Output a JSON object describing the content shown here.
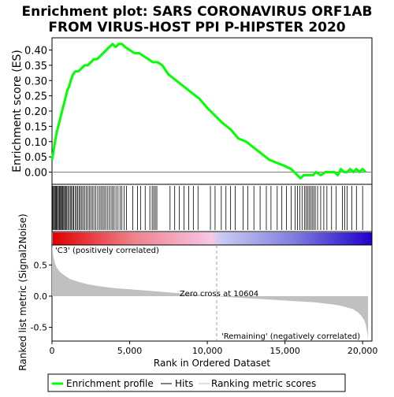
{
  "chart_data": [
    {
      "type": "line",
      "title_lines": [
        "Enrichment plot: SARS CORONAVIRUS ORF1AB",
        "FROM VIRUS-HOST PPI P-HIPSTER 2020"
      ],
      "ylabel": "Enrichment score (ES)",
      "ylim": [
        -0.04,
        0.44
      ],
      "xlim": [
        0,
        20600
      ],
      "yticks": [
        "0.00",
        "0.05",
        "0.10",
        "0.15",
        "0.20",
        "0.25",
        "0.30",
        "0.35",
        "0.40"
      ],
      "grid": false,
      "series": [
        {
          "name": "Enrichment profile",
          "color": "#00ff00",
          "x": [
            0,
            100,
            200,
            300,
            400,
            500,
            600,
            700,
            800,
            900,
            1000,
            1100,
            1200,
            1350,
            1500,
            1700,
            1900,
            2100,
            2300,
            2500,
            2700,
            2900,
            3100,
            3300,
            3500,
            3700,
            3900,
            4100,
            4300,
            4500,
            4700,
            5000,
            5300,
            5600,
            5900,
            6200,
            6500,
            6800,
            7100,
            7500,
            8000,
            8500,
            9000,
            9500,
            10000,
            10600,
            11000,
            11500,
            12000,
            12500,
            13000,
            13500,
            14000,
            14500,
            15000,
            15400,
            15800,
            16000,
            16200,
            16500,
            16800,
            17000,
            17300,
            17600,
            17900,
            18200,
            18400,
            18600,
            18800,
            19000,
            19200,
            19400,
            19600,
            19800,
            20000,
            20200
          ],
          "y": [
            0.04,
            0.07,
            0.1,
            0.13,
            0.15,
            0.17,
            0.19,
            0.21,
            0.23,
            0.25,
            0.27,
            0.28,
            0.3,
            0.32,
            0.33,
            0.33,
            0.34,
            0.35,
            0.35,
            0.36,
            0.37,
            0.37,
            0.38,
            0.39,
            0.4,
            0.41,
            0.42,
            0.41,
            0.42,
            0.42,
            0.41,
            0.4,
            0.39,
            0.39,
            0.38,
            0.37,
            0.36,
            0.36,
            0.35,
            0.32,
            0.3,
            0.28,
            0.26,
            0.24,
            0.21,
            0.18,
            0.16,
            0.14,
            0.11,
            0.1,
            0.08,
            0.06,
            0.04,
            0.03,
            0.02,
            0.01,
            -0.01,
            -0.02,
            -0.01,
            -0.01,
            -0.01,
            0.0,
            -0.01,
            0.0,
            0.0,
            0.0,
            -0.01,
            0.01,
            0.0,
            0.0,
            0.01,
            0.0,
            0.01,
            0.0,
            0.01,
            0.0
          ]
        }
      ]
    },
    {
      "type": "hits",
      "name": "Hits",
      "hit_positions": [
        30,
        90,
        140,
        200,
        250,
        300,
        350,
        420,
        480,
        540,
        600,
        650,
        700,
        760,
        820,
        880,
        950,
        1020,
        1100,
        1180,
        1250,
        1330,
        1400,
        1500,
        1580,
        1660,
        1750,
        1830,
        1920,
        2000,
        2100,
        2200,
        2300,
        2400,
        2500,
        2600,
        2700,
        2820,
        2940,
        3050,
        3150,
        3250,
        3350,
        3450,
        3560,
        3680,
        3800,
        3900,
        4000,
        4120,
        4250,
        4380,
        4500,
        4650,
        4800,
        5200,
        5500,
        5700,
        6000,
        6300,
        6450,
        6550,
        6650,
        6750,
        7600,
        7900,
        8200,
        8500,
        8800,
        9100,
        9400,
        10200,
        10500,
        10900,
        11200,
        11500,
        11800,
        12300,
        12600,
        13000,
        13400,
        13800,
        14100,
        14500,
        14800,
        15100,
        15400,
        15650,
        15800,
        15950,
        16100,
        16250,
        16350,
        16450,
        16550,
        16650,
        16750,
        16850,
        16950,
        17100,
        17300,
        17500,
        17700,
        18000,
        18300,
        18700,
        18850,
        19000,
        19300,
        19600,
        20000
      ]
    },
    {
      "type": "area",
      "ylabel": "Ranked list metric (Signal2Noise)",
      "xlabel": "Rank in Ordered Dataset",
      "xlim": [
        0,
        20600
      ],
      "ylim": [
        -0.72,
        0.82
      ],
      "xticks": [
        "0",
        "5,000",
        "10,000",
        "15,000",
        "20,000"
      ],
      "yticks": [
        "-0.5",
        "0.0",
        "0.5"
      ],
      "color": "#c0c0c0",
      "x": [
        0,
        50,
        100,
        200,
        300,
        500,
        800,
        1200,
        1700,
        2300,
        3000,
        4000,
        5000,
        6000,
        7000,
        8000,
        9000,
        10000,
        10604,
        11000,
        12000,
        13000,
        14000,
        15000,
        16000,
        17000,
        17500,
        18000,
        18500,
        19000,
        19400,
        19700,
        19900,
        20100,
        20200,
        20300,
        20350
      ],
      "y": [
        0.82,
        0.7,
        0.62,
        0.52,
        0.46,
        0.39,
        0.33,
        0.27,
        0.23,
        0.19,
        0.16,
        0.13,
        0.11,
        0.09,
        0.07,
        0.05,
        0.03,
        0.015,
        0.0,
        -0.01,
        -0.025,
        -0.04,
        -0.055,
        -0.07,
        -0.085,
        -0.1,
        -0.115,
        -0.13,
        -0.15,
        -0.18,
        -0.21,
        -0.26,
        -0.31,
        -0.38,
        -0.45,
        -0.58,
        -0.7
      ],
      "annotations": {
        "zero_cross": "Zero cross at 10604",
        "zero_cross_rank": 10604,
        "positive_label": "'C3' (positively correlated)",
        "negative_label": "'Remaining' (negatively correlated)"
      }
    }
  ],
  "legend": {
    "items": [
      {
        "label": "Enrichment profile",
        "color": "#00ff00"
      },
      {
        "label": "Hits",
        "color": "#000000"
      },
      {
        "label": "Ranking metric scores",
        "color": "#c0c0c0"
      }
    ]
  },
  "colors": {
    "profile": "#00ff00",
    "positive_label": "#cc0000",
    "negative_label": "#0000cc",
    "zero_line": "#808080"
  }
}
